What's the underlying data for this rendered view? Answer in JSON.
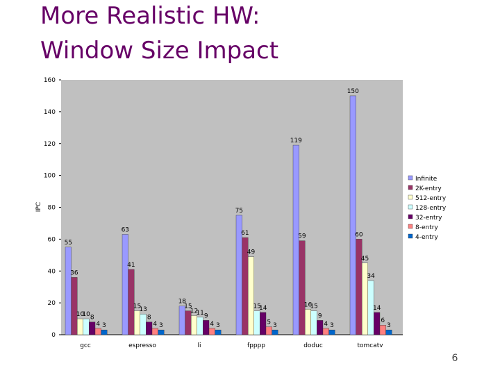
{
  "title_lines": [
    "More Realistic HW:",
    "Window Size Impact"
  ],
  "page_number": "6",
  "chart_data": {
    "type": "bar",
    "y_label": "IPC",
    "categories": [
      "gcc",
      "espresso",
      "li",
      "fpppp",
      "doduc",
      "tomcatv"
    ],
    "series": [
      {
        "name": "Infinite",
        "color": "#9999ff",
        "values": [
          55,
          63,
          18,
          75,
          119,
          150
        ]
      },
      {
        "name": "2K-entry",
        "color": "#993366",
        "values": [
          36,
          41,
          15,
          61,
          59,
          60
        ]
      },
      {
        "name": "512-entry",
        "color": "#ffffcc",
        "values": [
          10,
          15,
          12,
          49,
          16,
          45
        ]
      },
      {
        "name": "128-entry",
        "color": "#ccffff",
        "values": [
          10,
          13,
          11,
          15,
          15,
          34
        ]
      },
      {
        "name": "32-entry",
        "color": "#660066",
        "values": [
          8,
          8,
          9,
          14,
          9,
          14
        ]
      },
      {
        "name": "8-entry",
        "color": "#ff8080",
        "values": [
          4,
          4,
          4,
          5,
          4,
          6
        ]
      },
      {
        "name": "4-entry",
        "color": "#0066cc",
        "values": [
          3,
          3,
          3,
          3,
          3,
          3
        ]
      }
    ],
    "ylim": [
      0,
      160
    ],
    "yticks": [
      0,
      20,
      40,
      60,
      80,
      100,
      120,
      140,
      160
    ],
    "grid": false,
    "legend": "right"
  }
}
